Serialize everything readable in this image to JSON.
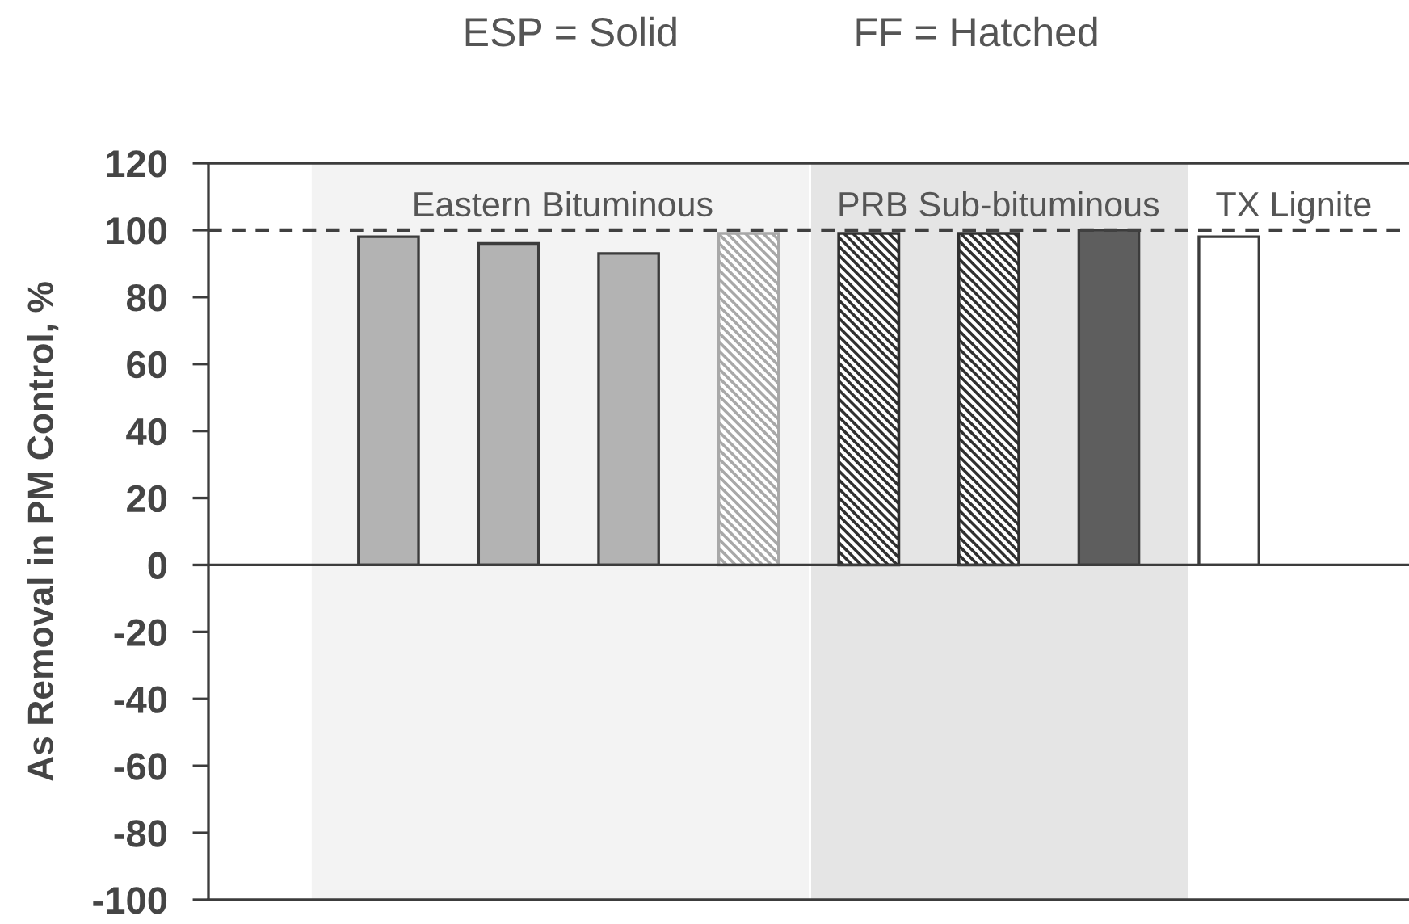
{
  "chart_data": {
    "type": "bar",
    "categories": [
      null,
      null,
      null,
      null,
      null,
      null,
      null,
      null,
      null,
      null
    ],
    "series": [
      {
        "colors": [
          null,
          "#b3b3b3",
          "#b3b3b3",
          "#b3b3b3",
          null,
          null,
          null,
          "#5e5e5e",
          "#ffffff",
          null
        ],
        "values": [
          null,
          98,
          96,
          93,
          null,
          null,
          null,
          100,
          98,
          null
        ]
      },
      {
        "colors": [
          null,
          null,
          null,
          null,
          "#a8a8a8",
          "#303030",
          "#303030",
          null,
          null,
          null
        ],
        "values": [
          null,
          null,
          null,
          null,
          99,
          99,
          99,
          null,
          null,
          null
        ]
      }
    ],
    "ylabel": "As Removal in PM Control, %",
    "ylim": [
      -100,
      120
    ],
    "yticks": [
      -100,
      -80,
      -60,
      -40,
      -20,
      0,
      20,
      40,
      60,
      80,
      100,
      120
    ],
    "ref_lines": [
      {
        "axis": "y",
        "value": 100,
        "line_style": "dashed",
        "color": "#404040"
      }
    ],
    "annotations": [
      "ESP = Solid",
      "FF = Hatched",
      "Eastern Bituminous",
      "PRB Sub-bituminous",
      "TX Lignite"
    ],
    "tick_labels": "y"
  }
}
